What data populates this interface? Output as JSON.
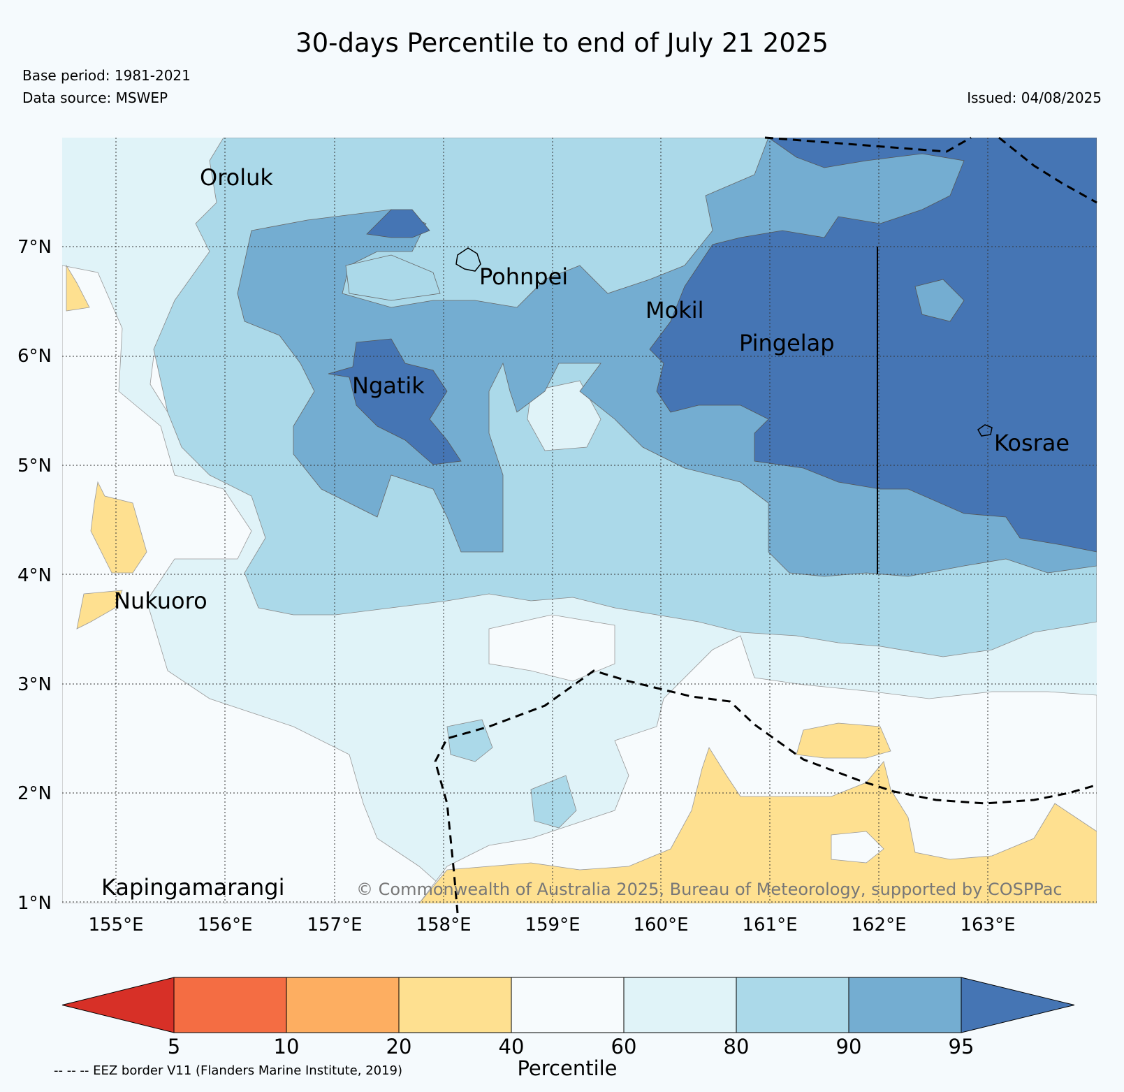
{
  "title": "30-days Percentile to end of July 21 2025",
  "base_period": "Base period: 1981-2021",
  "data_source": "Data source: MSWEP",
  "issued": "Issued: 04/08/2025",
  "copyright": "© Commonwealth of Australia 2025, Bureau of Meteorology, supported by COSPPac",
  "eez_note": "-- -- -- EEZ border V11 (Flanders Marine Institute, 2019)",
  "places": [
    "Oroluk",
    "Pohnpei",
    "Mokil",
    "Pingelap",
    "Ngatik",
    "Kosrae",
    "Nukuoro",
    "Kapingamarangi"
  ],
  "lat_ticks": [
    "7°N",
    "6°N",
    "5°N",
    "4°N",
    "3°N",
    "2°N",
    "1°N"
  ],
  "lon_ticks": [
    "155°E",
    "156°E",
    "157°E",
    "158°E",
    "159°E",
    "160°E",
    "161°E",
    "162°E",
    "163°E"
  ],
  "colorbar": {
    "label": "Percentile",
    "ticks": [
      "5",
      "10",
      "20",
      "40",
      "60",
      "80",
      "90",
      "95"
    ],
    "colors": [
      "#d73027",
      "#f46d43",
      "#fdae61",
      "#fee090",
      "#f7fbfd",
      "#e0f3f8",
      "#abd9e9",
      "#74add1",
      "#4575b4"
    ]
  }
}
